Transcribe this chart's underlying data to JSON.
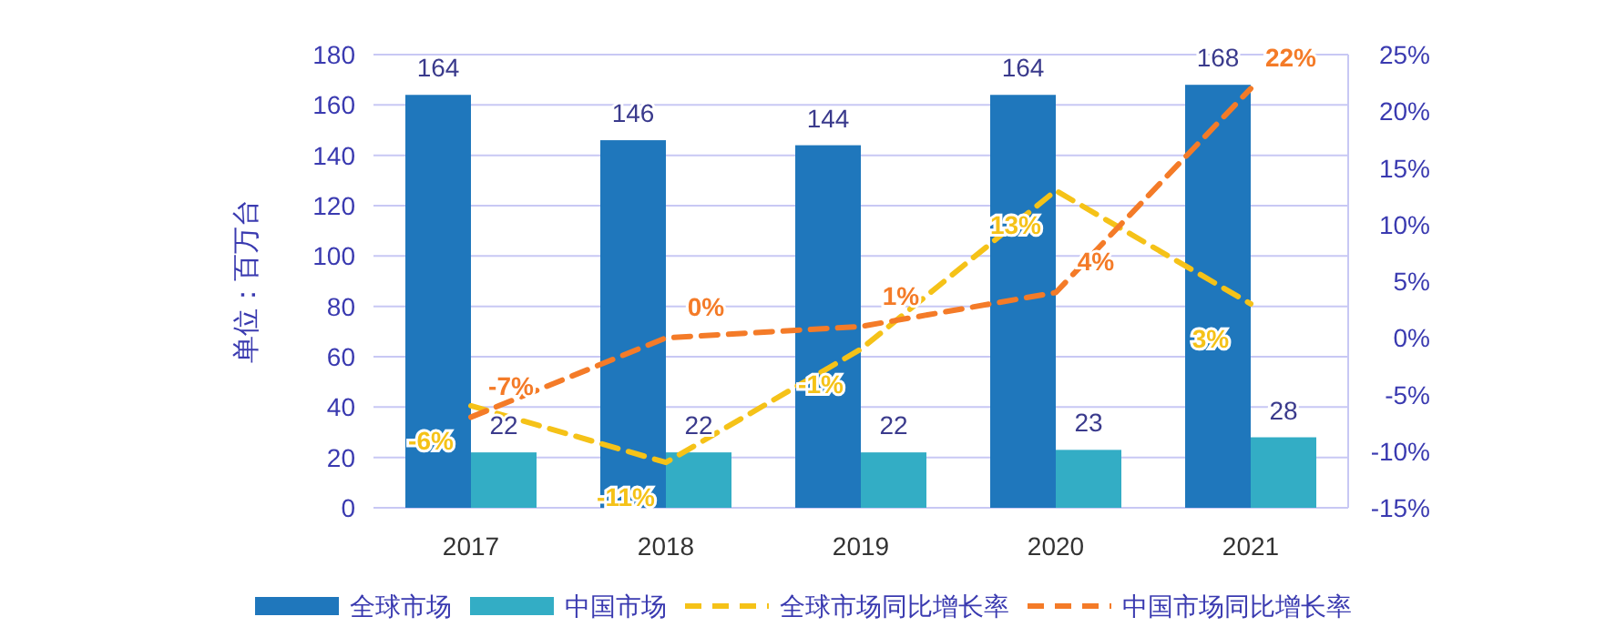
{
  "chart_data": {
    "type": "bar",
    "ylabel": "单位：百万台",
    "categories": [
      "2017",
      "2018",
      "2019",
      "2020",
      "2021"
    ],
    "series": [
      {
        "name": "全球市场",
        "color": "#1f77bc",
        "values": [
          164,
          146,
          144,
          164,
          168
        ],
        "value_labels": [
          "164",
          "146",
          "144",
          "164",
          "168"
        ]
      },
      {
        "name": "中国市场",
        "color": "#33adc5",
        "values": [
          22,
          22,
          22,
          23,
          28
        ],
        "value_labels": [
          "22",
          "22",
          "22",
          "23",
          "28"
        ]
      },
      {
        "name": "全球市场同比增长率",
        "type": "line",
        "axis": "y2",
        "color": "#f5c218",
        "line_style": "dashed",
        "values": [
          -6,
          -11,
          -1,
          13,
          3
        ],
        "value_labels": [
          "-6%",
          "-11%",
          "-1%",
          "13%",
          "3%"
        ]
      },
      {
        "name": "中国市场同比增长率",
        "type": "line",
        "axis": "y2",
        "color": "#f47b28",
        "line_style": "dashed",
        "values": [
          -7,
          0,
          1,
          4,
          22
        ],
        "value_labels": [
          "-7%",
          "0%",
          "1%",
          "4%",
          "22%"
        ]
      }
    ],
    "ylim": [
      0,
      180
    ],
    "yticks": [
      0,
      20,
      40,
      60,
      80,
      100,
      120,
      140,
      160,
      180
    ],
    "y2lim": [
      -15,
      25
    ],
    "y2ticks": [
      {
        "value": -15,
        "label": "-15%"
      },
      {
        "value": -10,
        "label": "-10%"
      },
      {
        "value": -5,
        "label": "-5%"
      },
      {
        "value": 0,
        "label": "0%"
      },
      {
        "value": 5,
        "label": "5%"
      },
      {
        "value": 10,
        "label": "10%"
      },
      {
        "value": 15,
        "label": "15%"
      },
      {
        "value": 20,
        "label": "20%"
      },
      {
        "value": 25,
        "label": "25%"
      }
    ],
    "grid": "y",
    "legend": "bottom"
  }
}
